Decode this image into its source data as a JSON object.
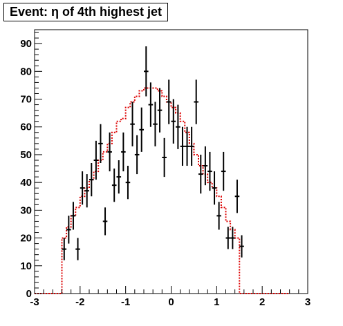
{
  "chart_data": {
    "type": "histogram",
    "title": "Event: η of 4th highest jet",
    "xlabel": "",
    "ylabel": "",
    "xlim": [
      -3,
      3
    ],
    "ylim": [
      0,
      95
    ],
    "x_ticks": [
      "-3",
      "-2",
      "-1",
      "0",
      "1",
      "2",
      "3"
    ],
    "y_ticks": [
      "0",
      "10",
      "20",
      "30",
      "40",
      "50",
      "60",
      "70",
      "80",
      "90"
    ],
    "grid": false,
    "legend": "none",
    "colors": {
      "data": "#000000",
      "histogram": "#dd0000"
    },
    "series": [
      {
        "type": "step",
        "style": "dotted",
        "bin_width": 0.1,
        "x_start": -3.0,
        "values": [
          0,
          0,
          0,
          0,
          0,
          0,
          20,
          24,
          28,
          31,
          35,
          38,
          41,
          44,
          48,
          51,
          54,
          58,
          62,
          63,
          67,
          69,
          71,
          73,
          74,
          74,
          74,
          73,
          71,
          69,
          67,
          65,
          62,
          58,
          54,
          50,
          46,
          43,
          40,
          38,
          35,
          31,
          26,
          23,
          20,
          0,
          0,
          0,
          0,
          0,
          0,
          0,
          0,
          0,
          0,
          0
        ]
      },
      {
        "type": "errorbar",
        "x": [
          -2.35,
          -2.25,
          -2.15,
          -2.05,
          -1.95,
          -1.85,
          -1.75,
          -1.65,
          -1.55,
          -1.45,
          -1.35,
          -1.25,
          -1.15,
          -1.05,
          -0.95,
          -0.85,
          -0.75,
          -0.65,
          -0.55,
          -0.45,
          -0.35,
          -0.25,
          -0.15,
          -0.05,
          0.05,
          0.15,
          0.25,
          0.35,
          0.45,
          0.55,
          0.65,
          0.75,
          0.85,
          0.95,
          1.05,
          1.15,
          1.25,
          1.35,
          1.45,
          1.55,
          1.65,
          1.75,
          1.85,
          1.95,
          2.05,
          2.15,
          2.25,
          2.35
        ],
        "y": [
          16,
          23,
          28,
          16,
          38,
          37,
          41,
          48,
          54,
          26,
          51,
          39,
          42,
          51,
          40,
          61,
          50,
          59,
          80,
          68,
          61,
          66,
          49,
          69,
          62,
          60,
          53,
          53,
          53,
          69,
          43,
          46,
          44,
          38,
          28,
          44,
          20,
          20,
          35,
          17,
          null,
          null,
          null,
          null,
          null,
          null,
          null,
          null
        ],
        "err": [
          4,
          5,
          5,
          4,
          6,
          6,
          6,
          7,
          7,
          5,
          7,
          6,
          6,
          7,
          6,
          8,
          7,
          8,
          9,
          8,
          8,
          8,
          7,
          8,
          8,
          8,
          7,
          7,
          7,
          8,
          7,
          7,
          7,
          6,
          5,
          7,
          4,
          4,
          6,
          4,
          null,
          null,
          null,
          null,
          null,
          null,
          null,
          null
        ]
      }
    ]
  }
}
